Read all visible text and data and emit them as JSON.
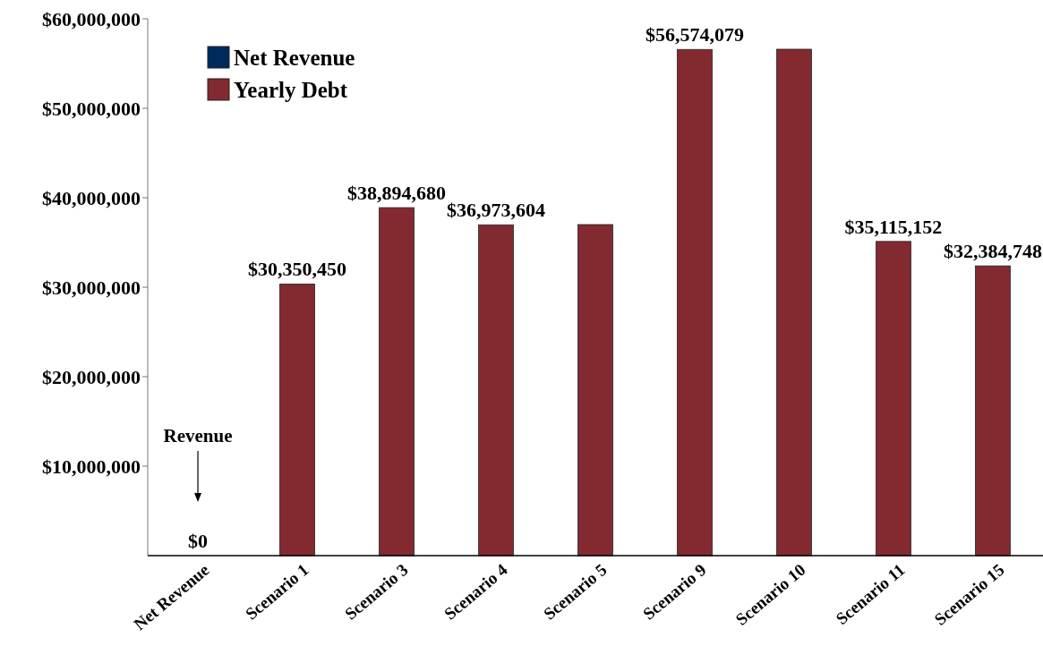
{
  "chart_data": {
    "type": "bar",
    "categories": [
      "Net Revenue",
      "Scenario 1",
      "Scenario 3",
      "Scenario 4",
      "Scenario 5",
      "Scenario 9",
      "Scenario 10",
      "Scenario 11",
      "Scenario 15"
    ],
    "series": [
      {
        "name": "Net Revenue",
        "color": "#002a5c",
        "values": [
          0,
          null,
          null,
          null,
          null,
          null,
          null,
          null,
          null
        ],
        "value_labels": [
          "$0",
          null,
          null,
          null,
          null,
          null,
          null,
          null,
          null
        ]
      },
      {
        "name": "Yearly Debt",
        "color": "#822a30",
        "values": [
          null,
          30350450,
          38894680,
          36973604,
          37000000,
          56574079,
          56600000,
          35115152,
          32384748
        ],
        "value_labels": [
          null,
          "$30,350,450",
          "$38,894,680",
          "$36,973,604",
          null,
          "$56,574,079",
          null,
          "$35,115,152",
          "$32,384,748"
        ]
      }
    ],
    "ylim": [
      0,
      60000000
    ],
    "yticks": [
      {
        "value": 10000000,
        "label": "$10,000,000"
      },
      {
        "value": 20000000,
        "label": "$20,000,000"
      },
      {
        "value": 30000000,
        "label": "$30,000,000"
      },
      {
        "value": 40000000,
        "label": "$40,000,000"
      },
      {
        "value": 50000000,
        "label": "$50,000,000"
      },
      {
        "value": 60000000,
        "label": "$60,000,000"
      }
    ],
    "annotations": [
      "Revenue"
    ],
    "legend": "top left",
    "grid": false
  }
}
